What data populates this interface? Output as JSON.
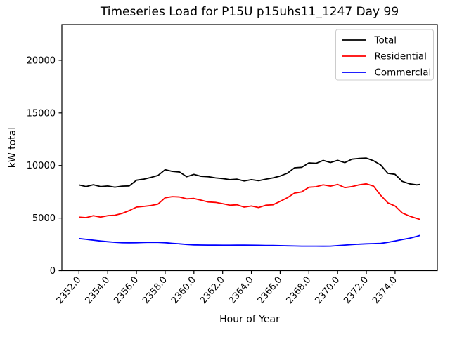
{
  "chart_data": {
    "type": "line",
    "title": "Timeseries Load for P15U p15uhs11_1247  Day 99",
    "xlabel": "Hour of Year",
    "ylabel": "kW total",
    "xlim": [
      2350.81,
      2376.94
    ],
    "ylim": [
      0,
      23400
    ],
    "grid": false,
    "background": "#ffffff",
    "frame_color": "#000000",
    "x_ticks": [
      2352,
      2354,
      2356,
      2358,
      2360,
      2362,
      2364,
      2366,
      2368,
      2370,
      2372,
      2374
    ],
    "x_tick_labels": [
      "2352.0",
      "2354.0",
      "2356.0",
      "2358.0",
      "2360.0",
      "2362.0",
      "2364.0",
      "2366.0",
      "2368.0",
      "2370.0",
      "2372.0",
      "2374.0"
    ],
    "x_tick_rotation": -50,
    "y_ticks": [
      0,
      5000,
      10000,
      15000,
      20000
    ],
    "y_tick_labels": [
      "0",
      "5000",
      "10000",
      "15000",
      "20000"
    ],
    "legend": {
      "position": "upper-right",
      "border_color": "#cccccc",
      "background": "#ffffff"
    },
    "x": [
      2352.0,
      2352.5,
      2353.0,
      2353.5,
      2354.0,
      2354.5,
      2355.0,
      2355.5,
      2356.0,
      2356.5,
      2357.0,
      2357.5,
      2358.0,
      2358.5,
      2359.0,
      2359.5,
      2360.0,
      2360.5,
      2361.0,
      2361.5,
      2362.0,
      2362.5,
      2363.0,
      2363.5,
      2364.0,
      2364.5,
      2365.0,
      2365.5,
      2366.0,
      2366.5,
      2367.0,
      2367.5,
      2368.0,
      2368.5,
      2369.0,
      2369.5,
      2370.0,
      2370.5,
      2371.0,
      2371.5,
      2372.0,
      2372.5,
      2373.0,
      2373.5,
      2374.0,
      2374.5,
      2375.0,
      2375.5,
      2375.75
    ],
    "series": [
      {
        "name": "Total",
        "color": "#000000",
        "values": [
          8150,
          8000,
          8170,
          7990,
          8050,
          7940,
          8040,
          8060,
          8600,
          8700,
          8860,
          9050,
          9600,
          9440,
          9380,
          8930,
          9150,
          8970,
          8930,
          8820,
          8760,
          8650,
          8700,
          8530,
          8650,
          8550,
          8700,
          8820,
          9000,
          9260,
          9780,
          9830,
          10250,
          10200,
          10480,
          10280,
          10490,
          10270,
          10600,
          10670,
          10700,
          10450,
          10050,
          9260,
          9160,
          8490,
          8260,
          8160,
          8200
        ]
      },
      {
        "name": "Residential",
        "color": "#ff0000",
        "values": [
          5090,
          5040,
          5220,
          5090,
          5230,
          5270,
          5440,
          5710,
          6040,
          6110,
          6190,
          6330,
          6930,
          7040,
          7000,
          6820,
          6860,
          6700,
          6530,
          6490,
          6370,
          6220,
          6260,
          6040,
          6150,
          6000,
          6220,
          6260,
          6590,
          6930,
          7375,
          7490,
          7930,
          7980,
          8155,
          8040,
          8200,
          7900,
          7990,
          8155,
          8260,
          8040,
          7160,
          6440,
          6150,
          5490,
          5190,
          4970,
          4860
        ]
      },
      {
        "name": "Commercial",
        "color": "#0000ff",
        "values": [
          3050,
          2980,
          2900,
          2820,
          2750,
          2700,
          2660,
          2650,
          2660,
          2680,
          2700,
          2690,
          2660,
          2600,
          2550,
          2490,
          2450,
          2440,
          2430,
          2430,
          2420,
          2420,
          2430,
          2430,
          2420,
          2410,
          2400,
          2390,
          2380,
          2360,
          2340,
          2330,
          2330,
          2330,
          2320,
          2330,
          2380,
          2430,
          2480,
          2520,
          2550,
          2570,
          2590,
          2700,
          2820,
          2950,
          3080,
          3250,
          3350
        ]
      }
    ]
  }
}
